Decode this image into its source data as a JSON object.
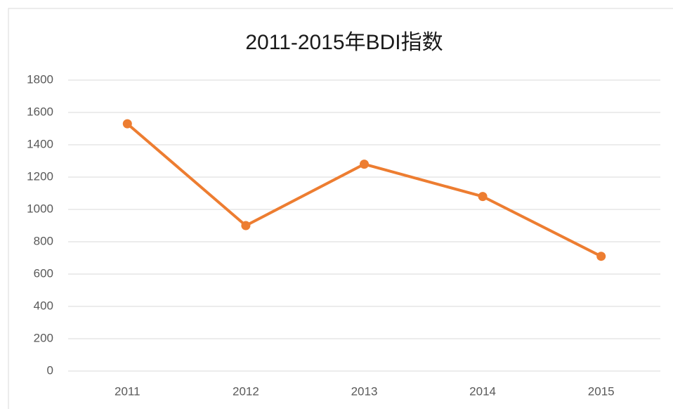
{
  "chart_data": {
    "type": "line",
    "title": "2011-2015年BDI指数",
    "categories": [
      "2011",
      "2012",
      "2013",
      "2014",
      "2015"
    ],
    "series": [
      {
        "name": "BDI",
        "color": "#ed7d31",
        "values": [
          1530,
          900,
          1280,
          1080,
          710
        ]
      }
    ],
    "ylim": [
      0,
      1800
    ],
    "yticks": [
      0,
      200,
      400,
      600,
      800,
      1000,
      1200,
      1400,
      1600,
      1800
    ],
    "grid": true,
    "legend": false
  }
}
